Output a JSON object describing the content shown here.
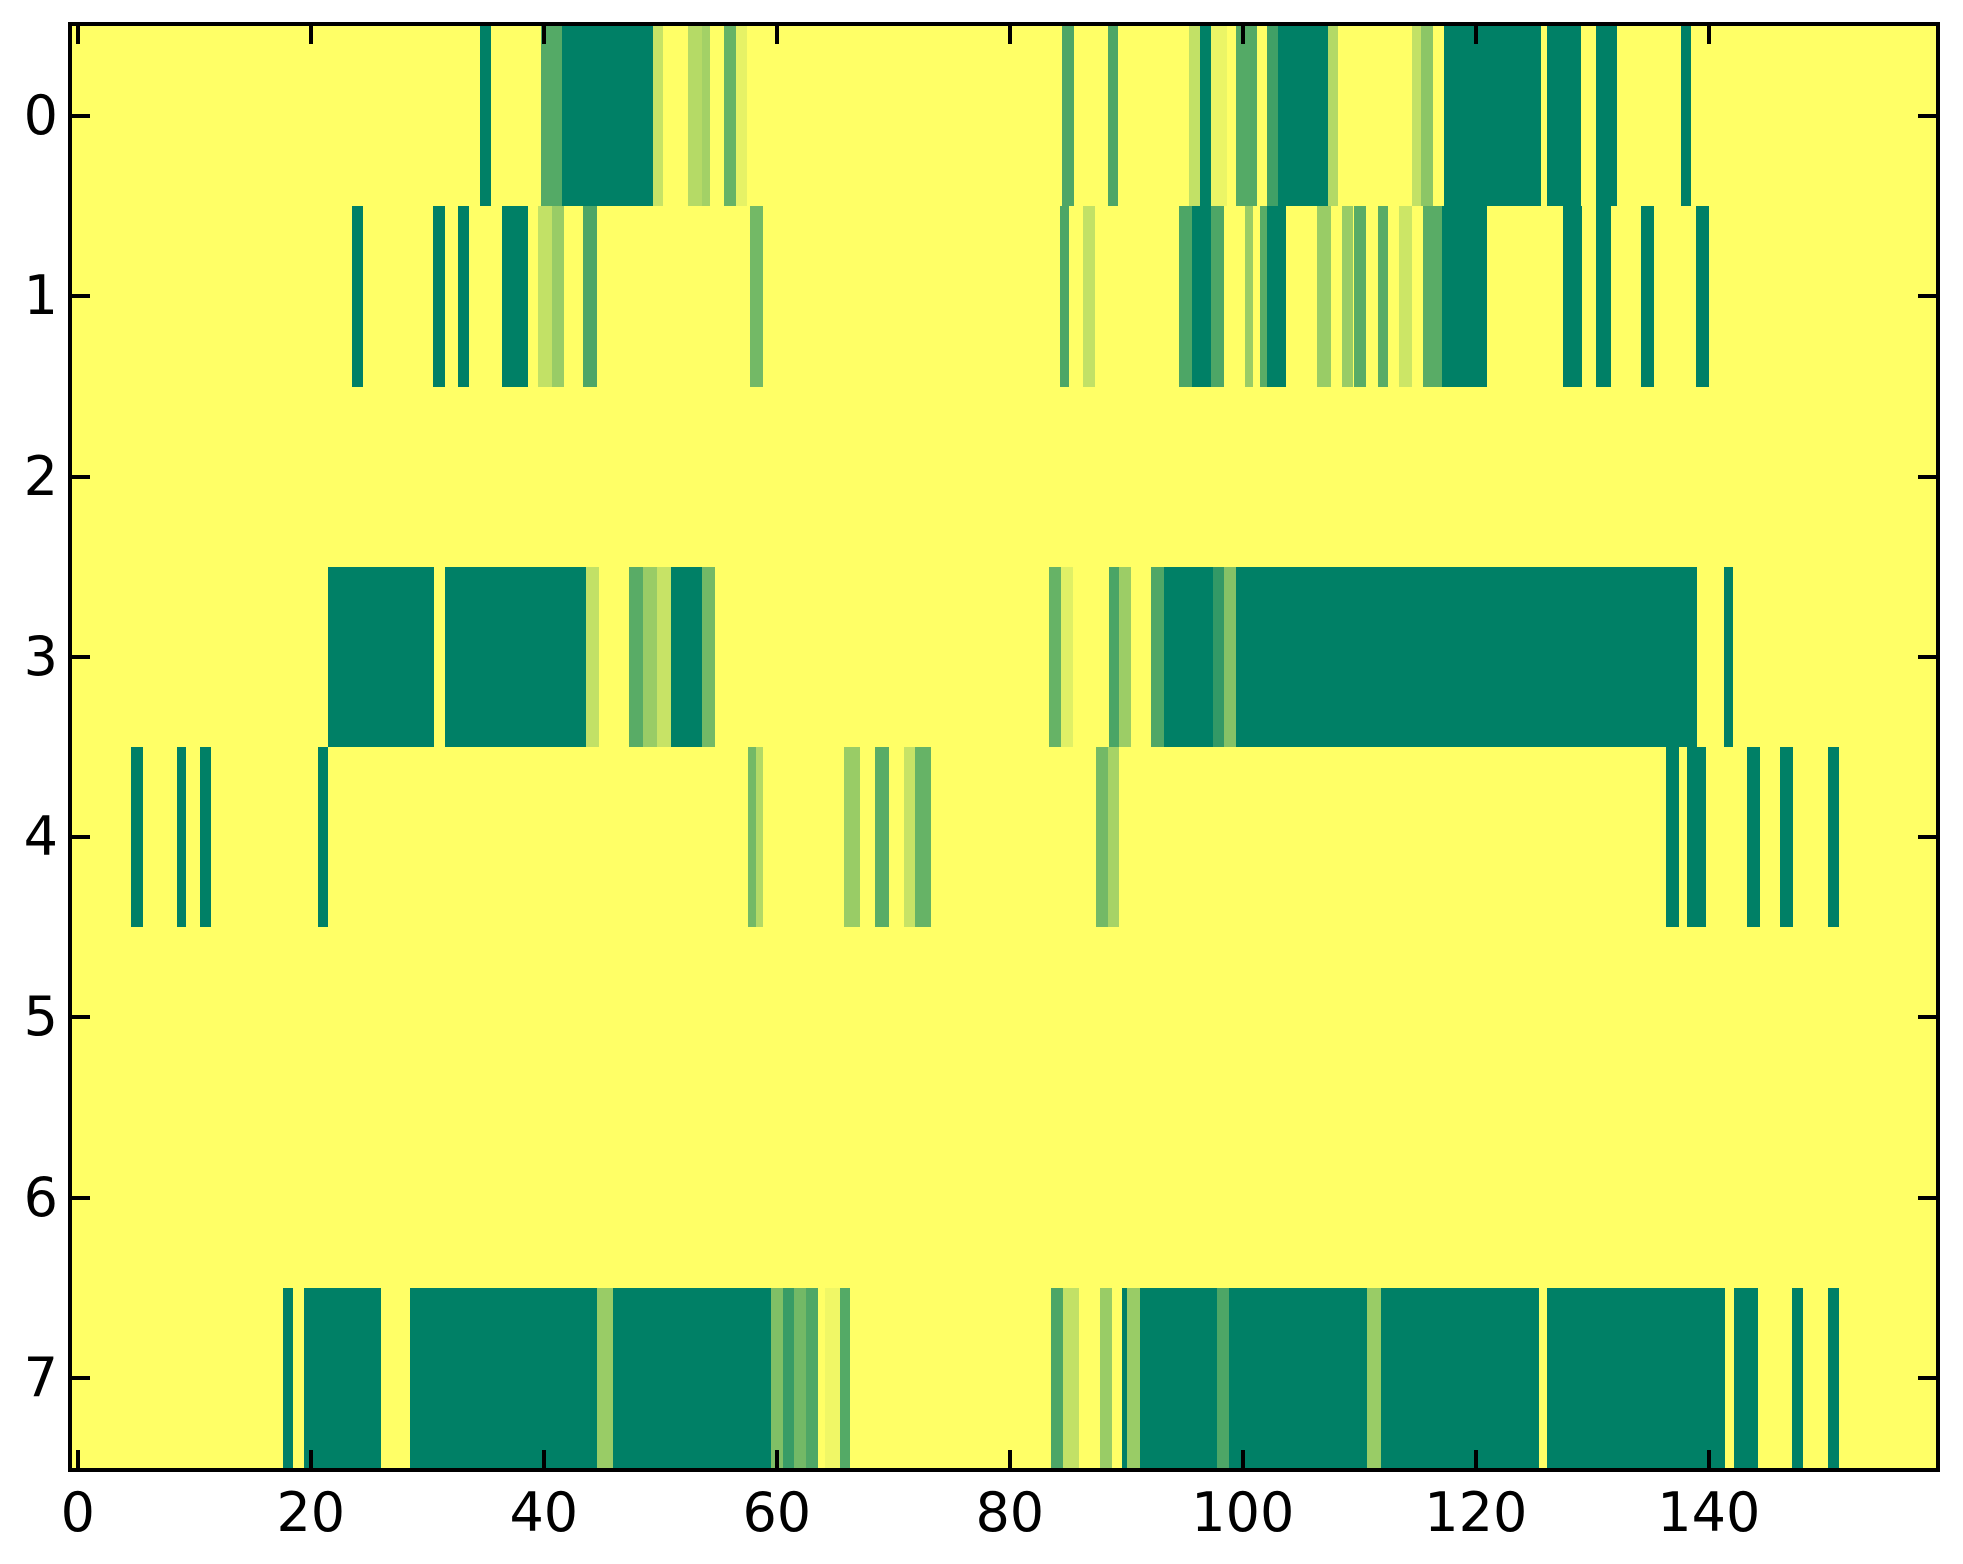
{
  "figure": {
    "background_color": "#ffffff",
    "plot_background_value": 1.0,
    "colormap": {
      "name": "summer",
      "low_value_color": "#008066",
      "high_value_color": "#ffff66",
      "blue_channel": 102
    }
  },
  "chart_data": {
    "type": "heatmap",
    "title": "",
    "xlabel": "",
    "ylabel": "",
    "grid": false,
    "x_axis": {
      "range": [
        -0.5,
        159.5
      ],
      "tick_values": [
        0,
        20,
        40,
        60,
        80,
        100,
        120,
        140
      ],
      "tick_labels": [
        "0",
        "20",
        "40",
        "60",
        "80",
        "100",
        "120",
        "140"
      ]
    },
    "y_axis": {
      "range": [
        -0.5,
        7.5
      ],
      "tick_values": [
        0,
        1,
        2,
        3,
        4,
        5,
        6,
        7
      ],
      "tick_labels": [
        "0",
        "1",
        "2",
        "3",
        "4",
        "5",
        "6",
        "7"
      ]
    },
    "background_value": 1.0,
    "rows": [
      {
        "y": 0,
        "segments": [
          [
            34.5,
            35.5,
            0.0
          ],
          [
            39.8,
            41.6,
            0.33
          ],
          [
            41.6,
            49.4,
            0.0
          ],
          [
            49.4,
            50.2,
            0.78
          ],
          [
            52.4,
            53.6,
            0.71
          ],
          [
            53.6,
            54.3,
            0.64
          ],
          [
            55.5,
            56.5,
            0.4
          ],
          [
            56.5,
            57.4,
            0.9
          ],
          [
            84.5,
            85.5,
            0.3
          ],
          [
            88.4,
            89.3,
            0.3
          ],
          [
            95.4,
            96.3,
            0.76
          ],
          [
            96.3,
            97.3,
            0.0
          ],
          [
            97.3,
            98.6,
            0.92
          ],
          [
            99.4,
            101.2,
            0.33
          ],
          [
            102.1,
            103.0,
            0.25
          ],
          [
            103.0,
            107.3,
            0.0
          ],
          [
            107.3,
            108.2,
            0.7
          ],
          [
            114.5,
            115.3,
            0.76
          ],
          [
            115.3,
            116.3,
            0.55
          ],
          [
            117.3,
            125.6,
            0.0
          ],
          [
            126.1,
            129.0,
            0.0
          ],
          [
            130.3,
            132.1,
            0.0
          ],
          [
            137.6,
            138.5,
            0.0
          ]
        ]
      },
      {
        "y": 1,
        "segments": [
          [
            23.5,
            24.5,
            0.0
          ],
          [
            30.5,
            31.5,
            0.0
          ],
          [
            32.6,
            33.6,
            0.0
          ],
          [
            36.4,
            38.6,
            0.0
          ],
          [
            39.5,
            40.7,
            0.76
          ],
          [
            40.7,
            41.7,
            0.6
          ],
          [
            43.4,
            44.6,
            0.3
          ],
          [
            57.7,
            58.8,
            0.45
          ],
          [
            84.3,
            85.1,
            0.3
          ],
          [
            86.3,
            87.3,
            0.76
          ],
          [
            94.5,
            95.6,
            0.3
          ],
          [
            95.6,
            97.3,
            0.0
          ],
          [
            97.3,
            98.4,
            0.3
          ],
          [
            100.2,
            100.9,
            0.6
          ],
          [
            101.5,
            102.1,
            0.35
          ],
          [
            102.1,
            103.7,
            0.0
          ],
          [
            106.4,
            107.6,
            0.6
          ],
          [
            108.5,
            109.5,
            0.6
          ],
          [
            109.5,
            110.6,
            0.35
          ],
          [
            111.6,
            112.5,
            0.35
          ],
          [
            113.4,
            114.5,
            0.8
          ],
          [
            115.5,
            117.1,
            0.35
          ],
          [
            117.1,
            121.0,
            0.0
          ],
          [
            127.5,
            129.1,
            0.0
          ],
          [
            130.3,
            131.6,
            0.0
          ],
          [
            134.2,
            135.3,
            0.0
          ],
          [
            138.9,
            140.0,
            0.0
          ]
        ]
      },
      {
        "y": 2,
        "segments": []
      },
      {
        "y": 3,
        "segments": [
          [
            21.5,
            30.6,
            0.0
          ],
          [
            31.5,
            43.6,
            0.0
          ],
          [
            43.6,
            44.7,
            0.76
          ],
          [
            47.3,
            48.5,
            0.35
          ],
          [
            48.5,
            49.7,
            0.6
          ],
          [
            49.7,
            50.9,
            0.78
          ],
          [
            50.9,
            53.6,
            0.0
          ],
          [
            53.6,
            54.7,
            0.45
          ],
          [
            83.4,
            84.4,
            0.4
          ],
          [
            84.4,
            85.4,
            0.88
          ],
          [
            88.5,
            89.4,
            0.29
          ],
          [
            89.4,
            90.4,
            0.61
          ],
          [
            92.1,
            93.2,
            0.31
          ],
          [
            93.2,
            97.4,
            0.0
          ],
          [
            97.4,
            98.4,
            0.2
          ],
          [
            98.4,
            99.4,
            0.52
          ],
          [
            99.4,
            139.0,
            0.0
          ],
          [
            141.3,
            142.1,
            0.0
          ]
        ]
      },
      {
        "y": 4,
        "segments": [
          [
            4.6,
            5.6,
            0.0
          ],
          [
            8.5,
            9.3,
            0.0
          ],
          [
            10.5,
            11.4,
            0.0
          ],
          [
            20.6,
            21.5,
            0.0
          ],
          [
            57.5,
            58.2,
            0.45
          ],
          [
            58.2,
            58.8,
            0.7
          ],
          [
            65.8,
            67.1,
            0.6
          ],
          [
            68.4,
            69.6,
            0.35
          ],
          [
            70.9,
            71.9,
            0.78
          ],
          [
            71.9,
            73.2,
            0.4
          ],
          [
            87.4,
            88.4,
            0.45
          ],
          [
            88.4,
            89.4,
            0.65
          ],
          [
            136.3,
            137.4,
            0.0
          ],
          [
            138.1,
            139.8,
            0.0
          ],
          [
            143.3,
            144.4,
            0.0
          ],
          [
            146.1,
            147.2,
            0.0
          ],
          [
            150.2,
            151.2,
            0.0
          ]
        ]
      },
      {
        "y": 5,
        "segments": []
      },
      {
        "y": 6,
        "segments": []
      },
      {
        "y": 7,
        "segments": [
          [
            17.6,
            18.5,
            0.0
          ],
          [
            19.4,
            26.0,
            0.0
          ],
          [
            28.5,
            44.6,
            0.0
          ],
          [
            44.6,
            45.9,
            0.6
          ],
          [
            45.9,
            59.5,
            0.0
          ],
          [
            59.5,
            60.5,
            0.5
          ],
          [
            60.5,
            61.5,
            0.22
          ],
          [
            61.5,
            62.5,
            0.45
          ],
          [
            62.5,
            63.5,
            0.31
          ],
          [
            64.1,
            65.4,
            0.94
          ],
          [
            65.4,
            66.3,
            0.33
          ],
          [
            83.5,
            84.6,
            0.3
          ],
          [
            84.6,
            85.9,
            0.76
          ],
          [
            87.7,
            88.8,
            0.6
          ],
          [
            89.6,
            90.1,
            0.0
          ],
          [
            90.1,
            91.2,
            0.6
          ],
          [
            91.2,
            97.8,
            0.0
          ],
          [
            97.8,
            98.8,
            0.3
          ],
          [
            98.8,
            110.7,
            0.0
          ],
          [
            110.7,
            111.9,
            0.6
          ],
          [
            111.9,
            125.4,
            0.0
          ],
          [
            126.1,
            141.4,
            0.0
          ],
          [
            142.2,
            144.2,
            0.0
          ],
          [
            147.1,
            148.1,
            0.0
          ],
          [
            150.2,
            151.2,
            0.0
          ]
        ]
      }
    ]
  }
}
